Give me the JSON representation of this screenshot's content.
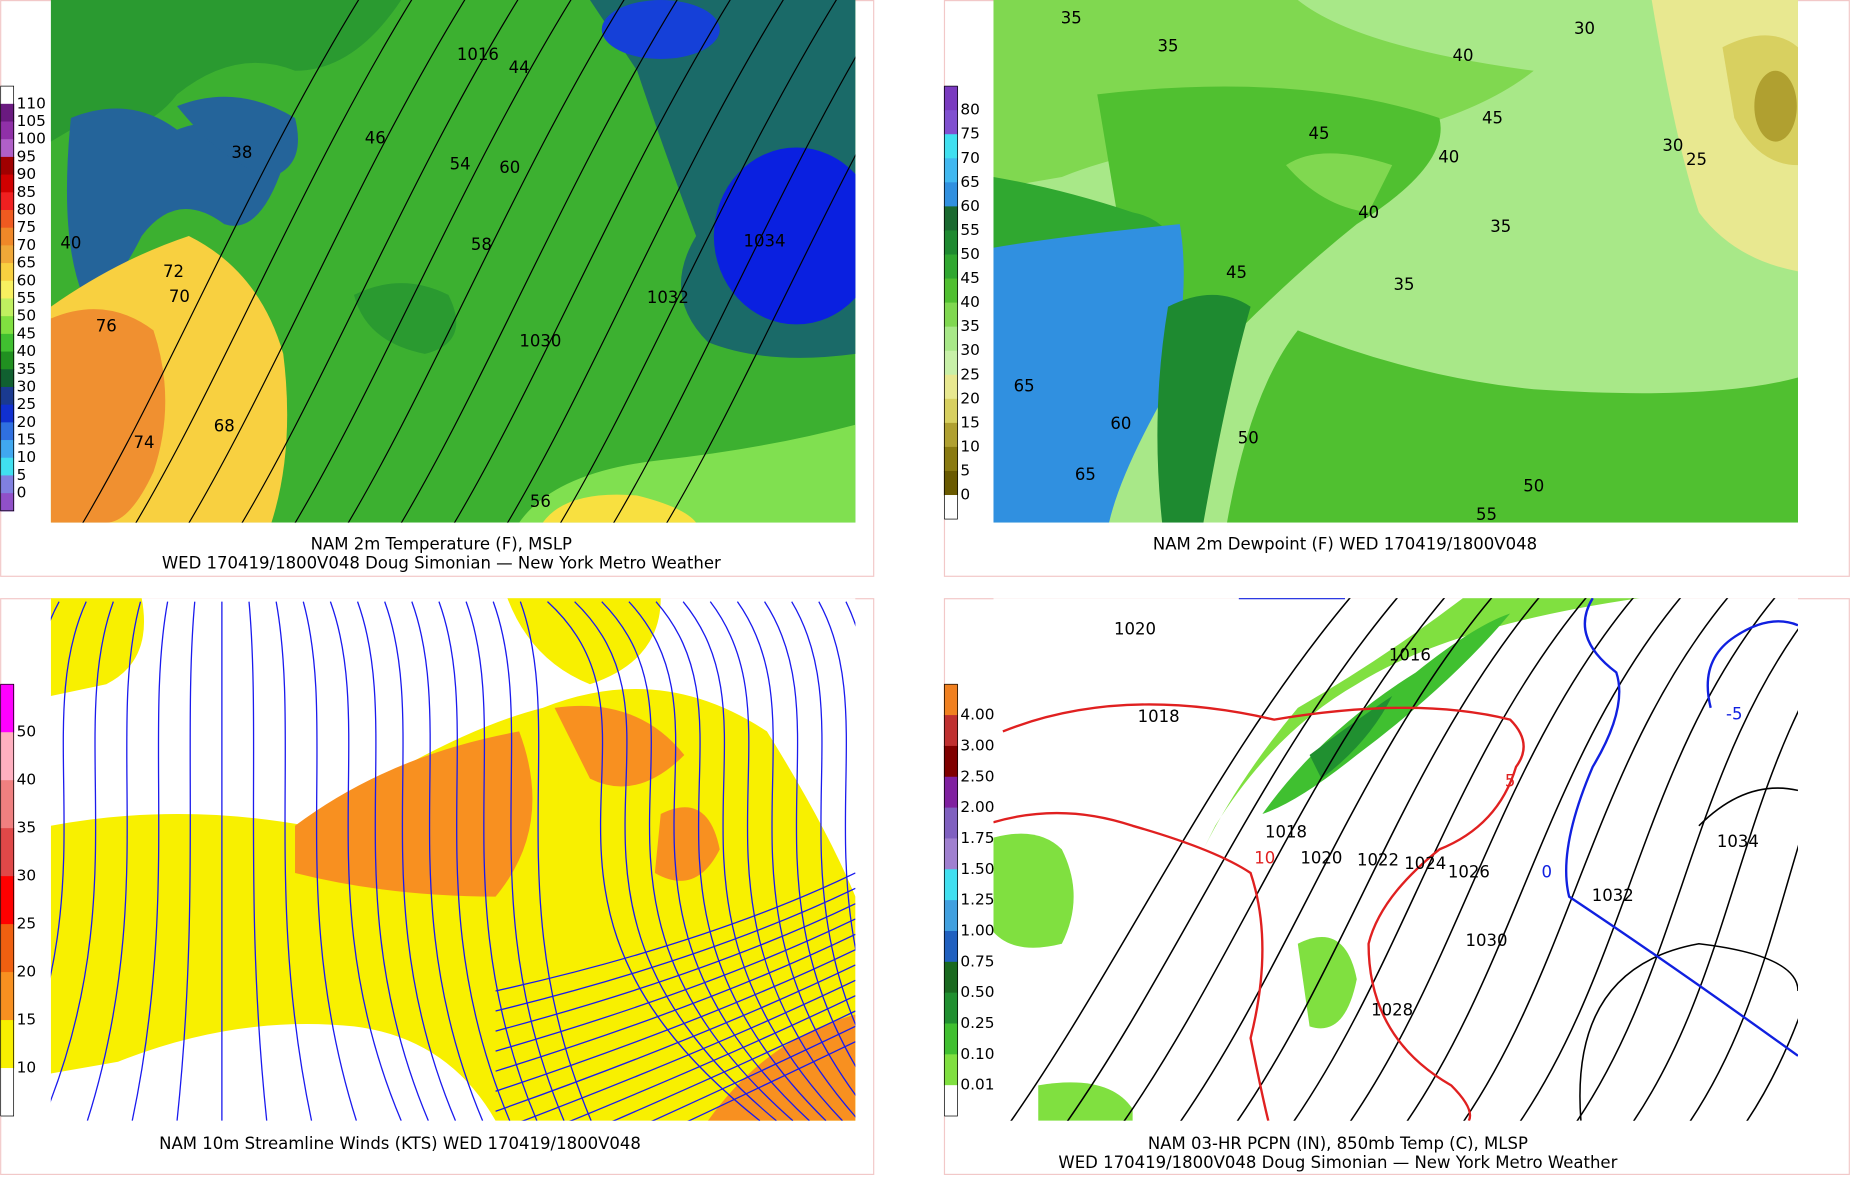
{
  "panels": [
    {
      "caption": [
        "NAM 2m Temperature (F), MSLP",
        "WED 170419/1800V048 Doug Simonian — New York Metro Weather"
      ],
      "colorbar": {
        "labels": [
          "110",
          "105",
          "100",
          "95",
          "90",
          "85",
          "80",
          "75",
          "70",
          "65",
          "60",
          "55",
          "50",
          "45",
          "40",
          "35",
          "30",
          "25",
          "20",
          "15",
          "10",
          "5",
          "0"
        ],
        "colors": [
          "#ffffff",
          "#6a1a80",
          "#9030a8",
          "#b060c8",
          "#a00000",
          "#d00000",
          "#f02020",
          "#f05a20",
          "#f08828",
          "#f0a838",
          "#f8d040",
          "#f8f060",
          "#c0f060",
          "#80e040",
          "#40c030",
          "#209020",
          "#106030",
          "#1a3a90",
          "#1030d0",
          "#2f70e0",
          "#40a8f0",
          "#40e0f0",
          "#8080e0",
          "#9050c8"
        ]
      },
      "labels": [
        "1016",
        "44",
        "46",
        "54",
        "60",
        "58",
        "1032",
        "1034",
        "38",
        "40",
        "70",
        "72",
        "76",
        "74",
        "68",
        "56",
        "1030"
      ]
    },
    {
      "caption": [
        "NAM 2m Dewpoint (F)  WED 170419/1800V048"
      ],
      "colorbar": {
        "labels": [
          "80",
          "75",
          "70",
          "65",
          "60",
          "55",
          "50",
          "45",
          "40",
          "35",
          "30",
          "25",
          "20",
          "15",
          "10",
          "5",
          "0"
        ],
        "colors": [
          "#7a3ac0",
          "#8050d0",
          "#40e0f0",
          "#40b8f0",
          "#3090e0",
          "#1a6a30",
          "#1e8a30",
          "#30a830",
          "#50c030",
          "#80d850",
          "#a8e888",
          "#c8f0a8",
          "#e8e890",
          "#d8d060",
          "#b0a030",
          "#8a7a10",
          "#6a5a00",
          "#ffffff"
        ]
      },
      "labels": [
        "35",
        "35",
        "40",
        "30",
        "45",
        "45",
        "40",
        "40",
        "35",
        "45",
        "35",
        "65",
        "60",
        "65",
        "50",
        "50",
        "55",
        "30",
        "25"
      ]
    },
    {
      "caption": [
        "NAM 10m Streamline Winds (KTS)  WED 170419/1800V048"
      ],
      "colorbar": {
        "labels": [
          "50",
          "40",
          "35",
          "30",
          "25",
          "20",
          "15",
          "10"
        ],
        "colors": [
          "#ff00ff",
          "#ffb0c0",
          "#f08080",
          "#e04848",
          "#ff0000",
          "#f06010",
          "#f89020",
          "#f8f000",
          "#ffffff"
        ]
      },
      "labels": []
    },
    {
      "caption": [
        "NAM 03-HR PCPN (IN), 850mb Temp (C), MLSP",
        "WED 170419/1800V048 Doug Simonian — New York Metro Weather"
      ],
      "colorbar": {
        "labels": [
          "4.00",
          "3.00",
          "2.50",
          "2.00",
          "1.75",
          "1.50",
          "1.25",
          "1.00",
          "0.75",
          "0.50",
          "0.25",
          "0.10",
          "0.01"
        ],
        "colors": [
          "#f08020",
          "#c03030",
          "#800000",
          "#8020a0",
          "#8060c0",
          "#a080d0",
          "#40e0f0",
          "#40a0e0",
          "#2060c0",
          "#1a6a20",
          "#209030",
          "#40c030",
          "#80e040",
          "#ffffff"
        ]
      },
      "labels": [
        "1020",
        "1016",
        "1018",
        "5",
        "-5",
        "1018",
        "10",
        "1020",
        "1022",
        "1024",
        "1026",
        "0",
        "1034",
        "1032",
        "1030",
        "1028"
      ]
    }
  ]
}
